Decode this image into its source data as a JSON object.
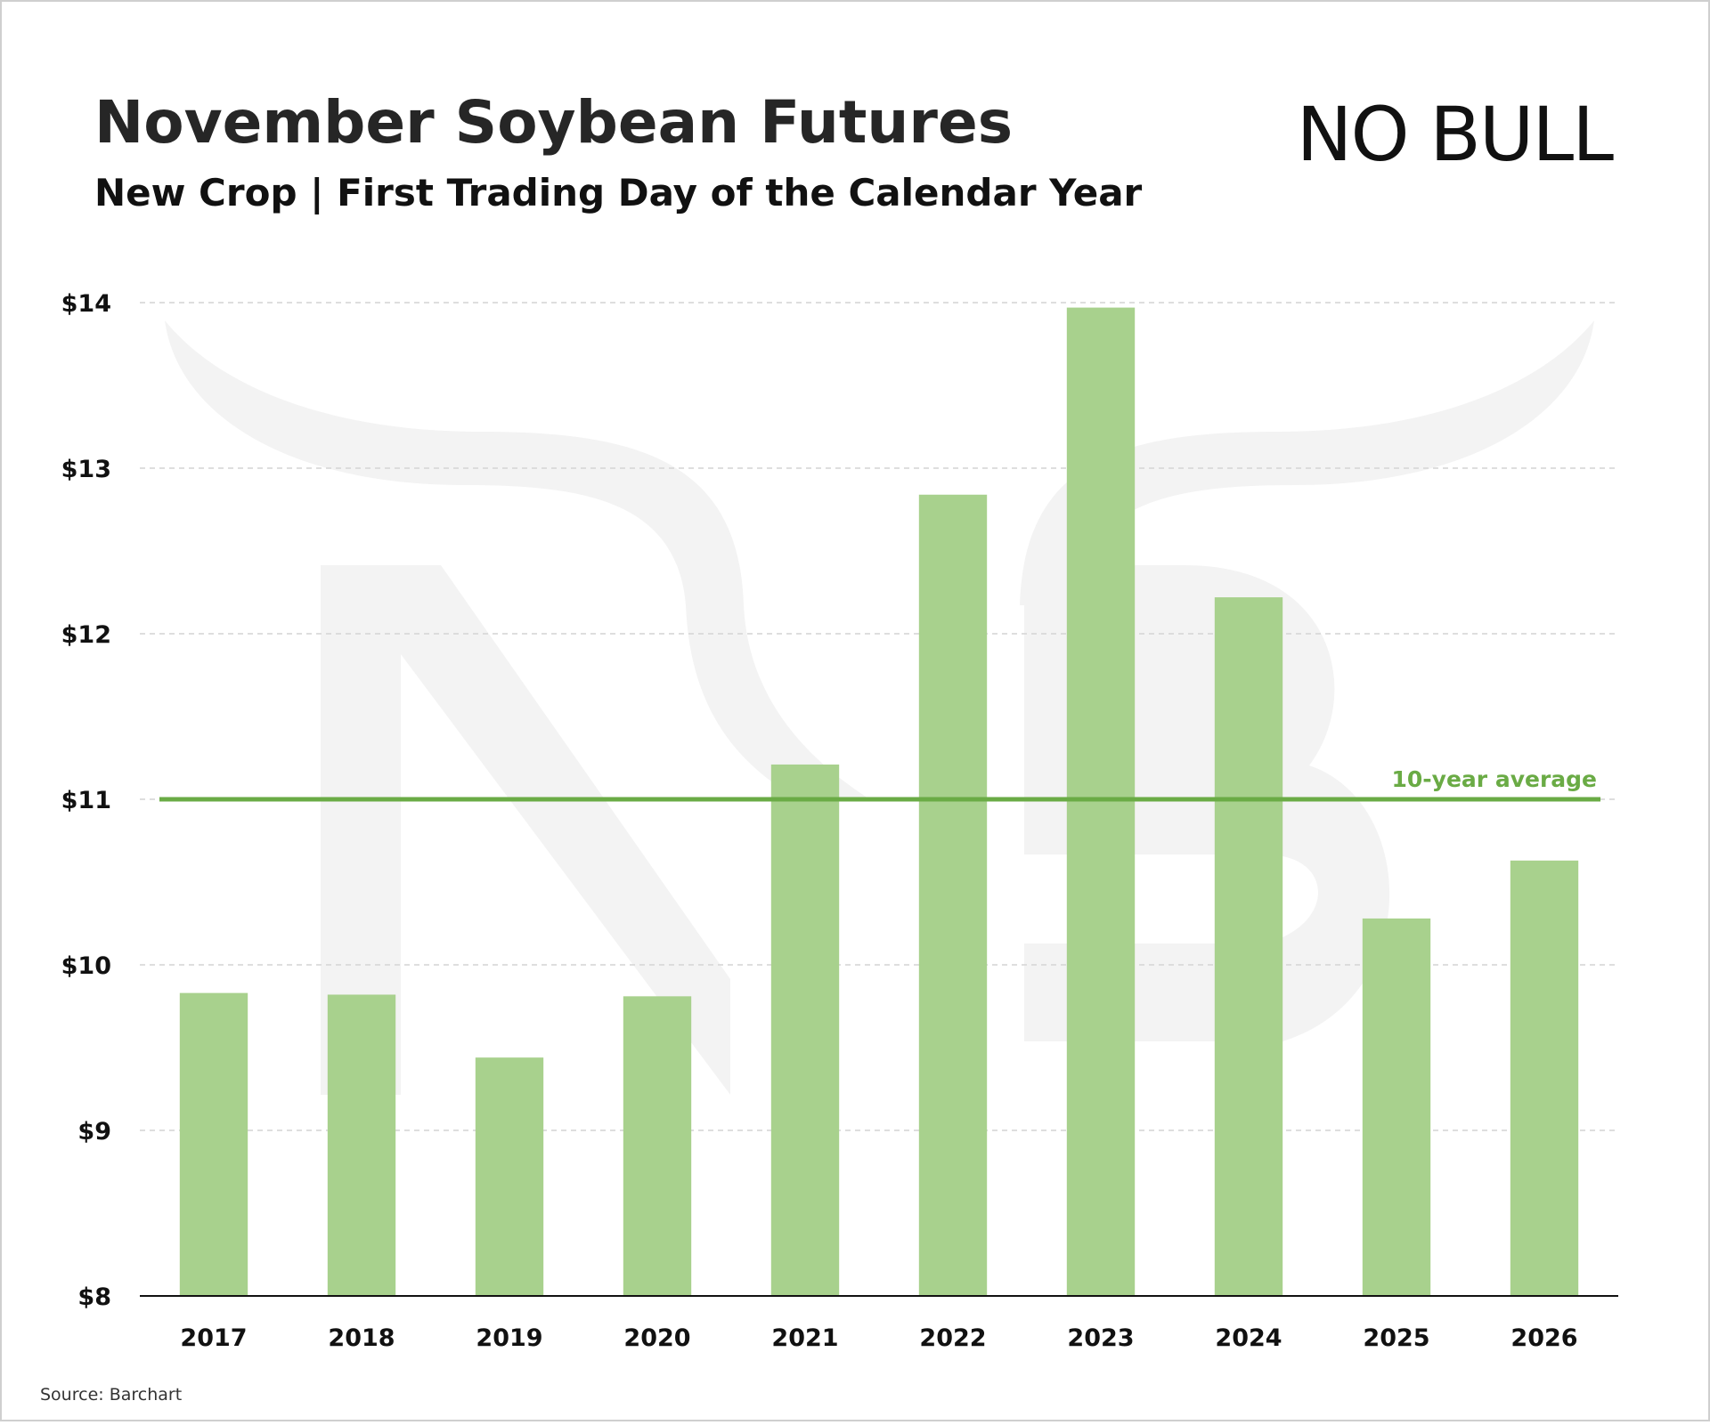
{
  "chart_data": {
    "type": "bar",
    "title": "November Soybean Futures",
    "subtitle": "New Crop | First Trading Day of the Calendar Year",
    "logo": "NO BULL",
    "source": "Source: Barchart",
    "categories": [
      "2017",
      "2018",
      "2019",
      "2020",
      "2021",
      "2022",
      "2023",
      "2024",
      "2025",
      "2026"
    ],
    "values": [
      9.83,
      9.82,
      9.44,
      9.81,
      11.21,
      12.84,
      13.97,
      12.22,
      10.28,
      10.63
    ],
    "color": "#a8d18d",
    "ylim": [
      8,
      14
    ],
    "yticks": [
      {
        "value": 8,
        "label": "$8"
      },
      {
        "value": 9,
        "label": "$9"
      },
      {
        "value": 10,
        "label": "$10"
      },
      {
        "value": 11,
        "label": "$11"
      },
      {
        "value": 12,
        "label": "$12"
      },
      {
        "value": 13,
        "label": "$13"
      },
      {
        "value": 14,
        "label": "$14"
      }
    ],
    "grid": true,
    "reference_line": {
      "value": 11.0,
      "label": "10-year average",
      "color": "#6aab45"
    }
  }
}
